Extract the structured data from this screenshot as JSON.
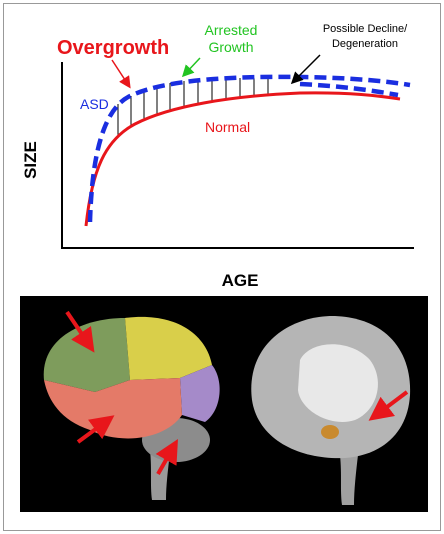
{
  "graph": {
    "y_axis_label": "SIZE",
    "x_axis_label": "AGE",
    "overgrowth": "Overgrowth",
    "arrested_growth": [
      "Arrested",
      "Growth"
    ],
    "decline": [
      "Possible Decline/",
      "Degeneration"
    ],
    "asd": "ASD",
    "normal": "Normal"
  }
}
